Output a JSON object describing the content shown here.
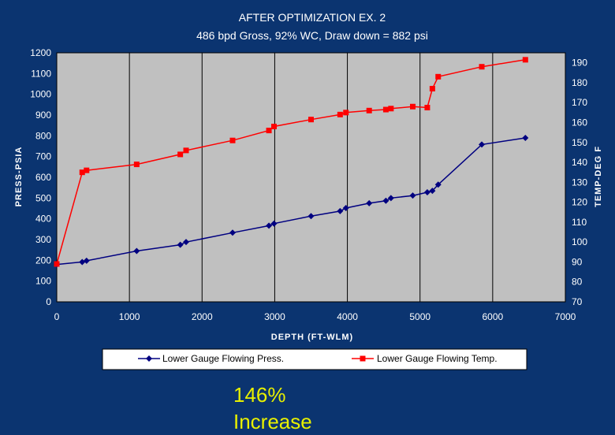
{
  "chart_data": {
    "type": "line",
    "title": "AFTER OPTIMIZATION EX. 2",
    "subtitle": "486 bpd Gross, 92% WC, Draw down = 882 psi",
    "xlabel": "DEPTH (FT-WLM)",
    "ylabel_left": "PRESS-PSIA",
    "ylabel_right": "TEMP-DEG F",
    "xlim": [
      0,
      7000
    ],
    "ylim_left": [
      0,
      1200
    ],
    "ylim_right": [
      70,
      195
    ],
    "x_ticks": [
      "0",
      "1000",
      "2000",
      "3000",
      "4000",
      "5000",
      "6000",
      "7000"
    ],
    "y_left_ticks": [
      "0",
      "100",
      "200",
      "300",
      "400",
      "500",
      "600",
      "700",
      "800",
      "900",
      "1000",
      "1100",
      "1200"
    ],
    "y_right_ticks": [
      "70",
      "80",
      "90",
      "100",
      "110",
      "120",
      "130",
      "140",
      "150",
      "160",
      "170",
      "180",
      "190"
    ],
    "grid": "vertical",
    "legend_position": "bottom",
    "series": [
      {
        "name": "Lower Gauge Flowing Press.",
        "axis": "left",
        "color": "#000080",
        "marker": "diamond",
        "x": [
          0,
          350,
          410,
          1100,
          1700,
          1780,
          2420,
          2920,
          2990,
          3500,
          3900,
          3980,
          4300,
          4530,
          4600,
          4900,
          5100,
          5170,
          5250,
          5850,
          6450
        ],
        "y": [
          180,
          192,
          198,
          245,
          275,
          288,
          333,
          367,
          377,
          413,
          437,
          452,
          475,
          487,
          500,
          512,
          528,
          535,
          565,
          758,
          790
        ]
      },
      {
        "name": "Lower Gauge Flowing Temp.",
        "axis": "right",
        "color": "#ff0000",
        "marker": "square",
        "x": [
          0,
          350,
          410,
          1100,
          1700,
          1780,
          2420,
          2920,
          2990,
          3500,
          3900,
          3980,
          4300,
          4530,
          4600,
          4900,
          5100,
          5170,
          5250,
          5850,
          6450
        ],
        "y": [
          89,
          135,
          136,
          139,
          144,
          146,
          151,
          156,
          158,
          161.5,
          164,
          165,
          166,
          166.5,
          167,
          168,
          167.5,
          177,
          183,
          188,
          191.5
        ]
      }
    ]
  },
  "callout": {
    "line1": "146%",
    "line2": "Increase"
  }
}
